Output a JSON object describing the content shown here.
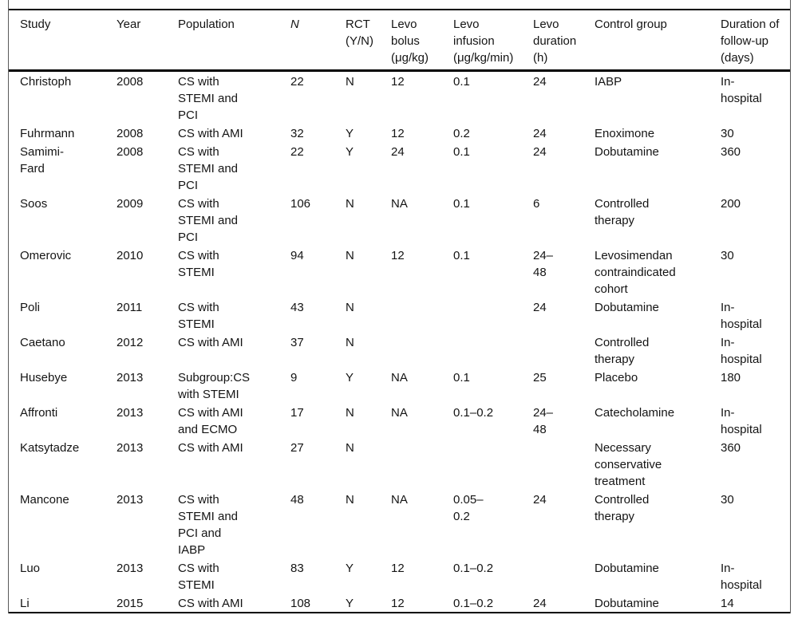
{
  "table": {
    "columns": [
      {
        "key": "study",
        "label": "Study"
      },
      {
        "key": "year",
        "label": "Year"
      },
      {
        "key": "population",
        "label": "Population"
      },
      {
        "key": "n",
        "label": "N"
      },
      {
        "key": "rct",
        "label": "RCT\n(Y/N)"
      },
      {
        "key": "bolus",
        "label": "Levo\nbolus\n(μg/kg)"
      },
      {
        "key": "infusion",
        "label": "Levo\ninfusion\n(μg/kg/min)"
      },
      {
        "key": "duration",
        "label": "Levo\nduration\n(h)"
      },
      {
        "key": "control",
        "label": "Control group"
      },
      {
        "key": "followup",
        "label": "Duration of\nfollow-up\n(days)"
      }
    ],
    "rows": [
      {
        "study": "Christoph",
        "year": "2008",
        "population": "CS with\nSTEMI and\nPCI",
        "n": "22",
        "rct": "N",
        "bolus": "12",
        "infusion": "0.1",
        "duration": "24",
        "control": "IABP",
        "followup": "In-\nhospital"
      },
      {
        "study": "Fuhrmann",
        "year": "2008",
        "population": "CS with AMI",
        "n": "32",
        "rct": "Y",
        "bolus": "12",
        "infusion": "0.2",
        "duration": "24",
        "control": "Enoximone",
        "followup": "30"
      },
      {
        "study": "Samimi-\nFard",
        "year": "2008",
        "population": "CS with\nSTEMI and\nPCI",
        "n": "22",
        "rct": "Y",
        "bolus": "24",
        "infusion": "0.1",
        "duration": "24",
        "control": "Dobutamine",
        "followup": "360"
      },
      {
        "study": "Soos",
        "year": "2009",
        "population": "CS with\nSTEMI and\nPCI",
        "n": "106",
        "rct": "N",
        "bolus": "NA",
        "infusion": "0.1",
        "duration": "6",
        "control": "Controlled\ntherapy",
        "followup": "200"
      },
      {
        "study": "Omerovic",
        "year": "2010",
        "population": "CS with\nSTEMI",
        "n": "94",
        "rct": "N",
        "bolus": "12",
        "infusion": "0.1",
        "duration": "24–\n48",
        "control": "Levosimendan\ncontraindicated\ncohort",
        "followup": "30"
      },
      {
        "study": "Poli",
        "year": "2011",
        "population": "CS with\nSTEMI",
        "n": "43",
        "rct": "N",
        "bolus": "",
        "infusion": "",
        "duration": "24",
        "control": "Dobutamine",
        "followup": "In-\nhospital"
      },
      {
        "study": "Caetano",
        "year": "2012",
        "population": "CS with AMI",
        "n": "37",
        "rct": "N",
        "bolus": "",
        "infusion": "",
        "duration": "",
        "control": "Controlled\ntherapy",
        "followup": "In-\nhospital"
      },
      {
        "study": "Husebye",
        "year": "2013",
        "population": "Subgroup:CS\nwith STEMI",
        "n": "9",
        "rct": "Y",
        "bolus": "NA",
        "infusion": "0.1",
        "duration": "25",
        "control": "Placebo",
        "followup": "180"
      },
      {
        "study": "Affronti",
        "year": "2013",
        "population": "CS with AMI\nand ECMO",
        "n": "17",
        "rct": "N",
        "bolus": "NA",
        "infusion": "0.1–0.2",
        "duration": "24–\n48",
        "control": "Catecholamine",
        "followup": "In-\nhospital"
      },
      {
        "study": "Katsytadze",
        "year": "2013",
        "population": "CS with AMI",
        "n": "27",
        "rct": "N",
        "bolus": "",
        "infusion": "",
        "duration": "",
        "control": "Necessary\nconservative\ntreatment",
        "followup": "360"
      },
      {
        "study": "Mancone",
        "year": "2013",
        "population": "CS with\nSTEMI and\nPCI and\nIABP",
        "n": "48",
        "rct": "N",
        "bolus": "NA",
        "infusion": "0.05–\n0.2",
        "duration": "24",
        "control": "Controlled\ntherapy",
        "followup": "30"
      },
      {
        "study": "Luo",
        "year": "2013",
        "population": "CS with\nSTEMI",
        "n": "83",
        "rct": "Y",
        "bolus": "12",
        "infusion": "0.1–0.2",
        "duration": "",
        "control": "Dobutamine",
        "followup": "In-\nhospital"
      },
      {
        "study": "Li",
        "year": "2015",
        "population": "CS with AMI",
        "n": "108",
        "rct": "Y",
        "bolus": "12",
        "infusion": "0.1–0.2",
        "duration": "24",
        "control": "Dobutamine",
        "followup": "14"
      }
    ]
  }
}
